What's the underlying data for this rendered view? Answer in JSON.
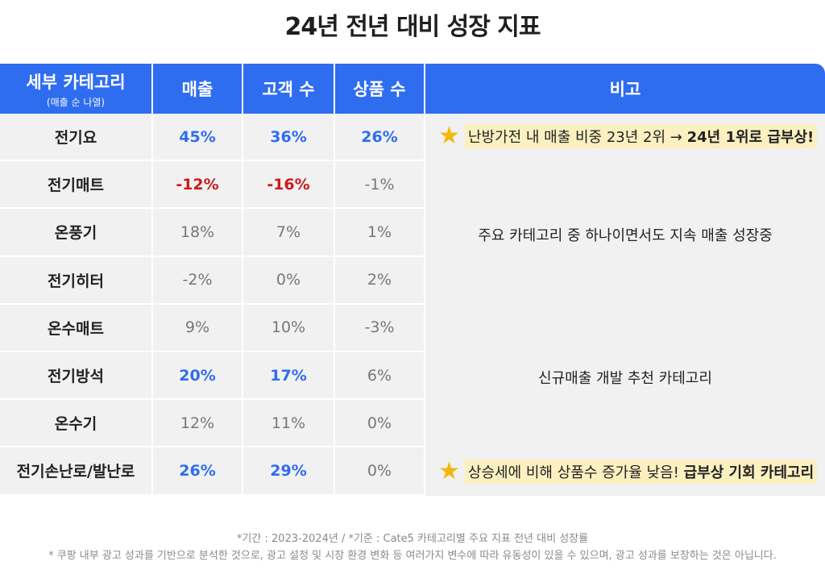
{
  "title": "24년 전년 대비 성장 지표",
  "header": {
    "category": "세부 카테고리",
    "category_sub": "(매출 순 나열)",
    "sales": "매출",
    "customers": "고객 수",
    "products": "상품 수",
    "notes": "비고"
  },
  "rows": [
    {
      "category": "전기요",
      "sales": "45%",
      "customers": "36%",
      "products": "26%"
    },
    {
      "category": "전기매트",
      "sales": "-12%",
      "customers": "-16%",
      "products": "-1%"
    },
    {
      "category": "온풍기",
      "sales": "18%",
      "customers": "7%",
      "products": "1%"
    },
    {
      "category": "전기히터",
      "sales": "-2%",
      "customers": "0%",
      "products": "2%"
    },
    {
      "category": "온수매트",
      "sales": "9%",
      "customers": "10%",
      "products": "-3%"
    },
    {
      "category": "전기방석",
      "sales": "20%",
      "customers": "17%",
      "products": "6%"
    },
    {
      "category": "온수기",
      "sales": "12%",
      "customers": "11%",
      "products": "0%"
    },
    {
      "category": "전기손난로/발난로",
      "sales": "26%",
      "customers": "29%",
      "products": "0%"
    }
  ],
  "notes": {
    "note1_plain": "난방가전 내 매출 비중 23년 2위 → ",
    "note1_bold": "24년 1위로 급부상!",
    "note2": "주요 카테고리 중 하나이면서도 지속 매출 성장중",
    "note3": "신규매출 개발 추천 카테고리",
    "note4_plain": "상승세에 비해 상품수 증가율 낮음! ",
    "note4_bold": "급부상 기회 카테고리"
  },
  "footer": {
    "line1": "*기간 : 2023-2024년 / *기준 : Cate5 카테고리별 주요 지표 전년 대비 성장률",
    "line2": "* 쿠팡 내부 광고 성과를 기반으로 분석한 것으로, 광고 설정 및 시장 환경 변화 등 여러가지 변수에 따라 유동성이 있을 수 있으며, 광고 성과를 보장하는 것은 아닙니다."
  },
  "colors": {
    "header_bg": "#2f6df0",
    "positive_highlight": "#2f6df0",
    "negative_highlight": "#cc1a1a",
    "note_highlight": "#fbf0c0",
    "star": "#f2b90c"
  }
}
